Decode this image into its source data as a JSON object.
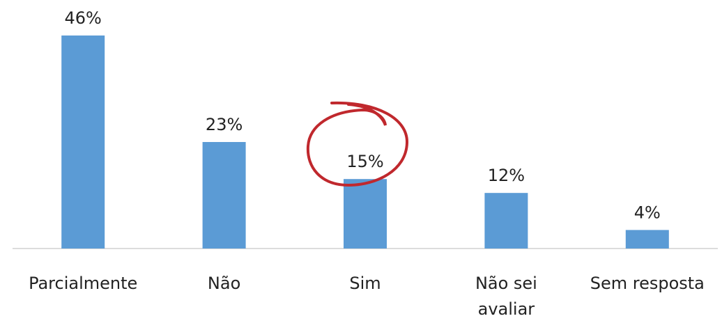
{
  "chart_data": {
    "type": "bar",
    "categories": [
      "Parcialmente",
      "Não",
      "Sim",
      "Não sei avaliar",
      "Sem resposta"
    ],
    "values": [
      46,
      23,
      15,
      12,
      4
    ],
    "value_labels": [
      "46%",
      "23%",
      "15%",
      "12%",
      "4%"
    ],
    "color": "#5b9bd5"
  }
}
